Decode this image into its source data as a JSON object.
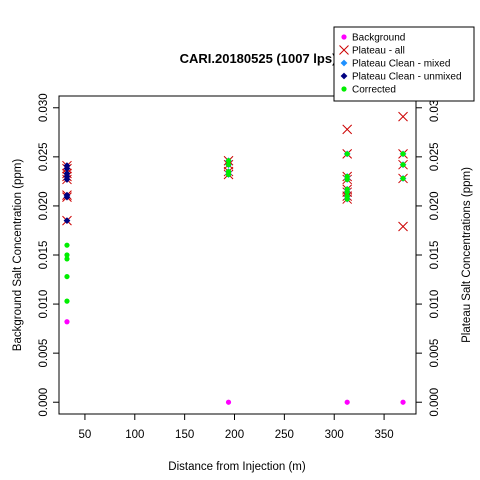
{
  "chart_data": {
    "type": "scatter",
    "title": "CARI.20180525 (1007 lps)",
    "xlabel": "Distance from Injection (m)",
    "ylabel_left": "Background Salt Concentration (ppm)",
    "ylabel_right": "Plateau Salt Concentrations (ppm)",
    "xlim": [
      24,
      382
    ],
    "ylim": [
      -0.0012,
      0.0312
    ],
    "x_ticks": [
      50,
      100,
      150,
      200,
      250,
      300,
      350
    ],
    "x_tick_labels": [
      "50",
      "100",
      "150",
      "200",
      "250",
      "300",
      "350"
    ],
    "y_ticks": [
      0,
      0.005,
      0.01,
      0.015,
      0.02,
      0.025,
      0.03
    ],
    "y_tick_labels": [
      "0.000",
      "0.005",
      "0.010",
      "0.015",
      "0.020",
      "0.025",
      "0.030"
    ],
    "legend": {
      "position": "top-right",
      "entries": [
        "Background",
        "Plateau - all",
        "Plateau Clean - mixed",
        "Plateau Clean - unmixed",
        "Corrected"
      ]
    },
    "grid": false,
    "series": [
      {
        "name": "Background",
        "marker": "dot",
        "color": "#ff00ff",
        "points": [
          {
            "x": 32,
            "y": 0.0082
          },
          {
            "x": 194,
            "y": 0.0
          },
          {
            "x": 313,
            "y": 0.0
          },
          {
            "x": 369,
            "y": 0.0
          }
        ]
      },
      {
        "name": "Plateau - all",
        "marker": "x",
        "color": "#cc0000",
        "points": [
          {
            "x": 32,
            "y": 0.0241
          },
          {
            "x": 32,
            "y": 0.0238
          },
          {
            "x": 32,
            "y": 0.0233
          },
          {
            "x": 32,
            "y": 0.023
          },
          {
            "x": 32,
            "y": 0.0227
          },
          {
            "x": 32,
            "y": 0.0211
          },
          {
            "x": 32,
            "y": 0.0209
          },
          {
            "x": 32,
            "y": 0.0185
          },
          {
            "x": 194,
            "y": 0.0246
          },
          {
            "x": 194,
            "y": 0.0242
          },
          {
            "x": 194,
            "y": 0.0235
          },
          {
            "x": 194,
            "y": 0.0232
          },
          {
            "x": 313,
            "y": 0.0278
          },
          {
            "x": 313,
            "y": 0.0253
          },
          {
            "x": 313,
            "y": 0.023
          },
          {
            "x": 313,
            "y": 0.0227
          },
          {
            "x": 313,
            "y": 0.0217
          },
          {
            "x": 313,
            "y": 0.0214
          },
          {
            "x": 313,
            "y": 0.021
          },
          {
            "x": 313,
            "y": 0.0207
          },
          {
            "x": 369,
            "y": 0.0291
          },
          {
            "x": 369,
            "y": 0.0253
          },
          {
            "x": 369,
            "y": 0.0242
          },
          {
            "x": 369,
            "y": 0.0228
          },
          {
            "x": 369,
            "y": 0.0179
          }
        ]
      },
      {
        "name": "Plateau Clean - mixed",
        "marker": "diamond",
        "color": "#1e90ff",
        "points": [
          {
            "x": 194,
            "y": 0.0246
          },
          {
            "x": 194,
            "y": 0.0242
          },
          {
            "x": 194,
            "y": 0.0235
          },
          {
            "x": 194,
            "y": 0.0232
          },
          {
            "x": 313,
            "y": 0.0253
          },
          {
            "x": 313,
            "y": 0.023
          },
          {
            "x": 313,
            "y": 0.0227
          },
          {
            "x": 313,
            "y": 0.0217
          },
          {
            "x": 313,
            "y": 0.0214
          },
          {
            "x": 313,
            "y": 0.021
          },
          {
            "x": 313,
            "y": 0.0207
          },
          {
            "x": 369,
            "y": 0.0253
          },
          {
            "x": 369,
            "y": 0.0242
          },
          {
            "x": 369,
            "y": 0.0228
          }
        ]
      },
      {
        "name": "Plateau Clean - unmixed",
        "marker": "diamond",
        "color": "#000080",
        "points": [
          {
            "x": 32,
            "y": 0.0241
          },
          {
            "x": 32,
            "y": 0.0238
          },
          {
            "x": 32,
            "y": 0.0233
          },
          {
            "x": 32,
            "y": 0.023
          },
          {
            "x": 32,
            "y": 0.0227
          },
          {
            "x": 32,
            "y": 0.0211
          },
          {
            "x": 32,
            "y": 0.0209
          },
          {
            "x": 32,
            "y": 0.0185
          }
        ]
      },
      {
        "name": "Corrected",
        "marker": "dot",
        "color": "#00ee00",
        "points": [
          {
            "x": 32,
            "y": 0.016
          },
          {
            "x": 32,
            "y": 0.015
          },
          {
            "x": 32,
            "y": 0.0146
          },
          {
            "x": 32,
            "y": 0.0128
          },
          {
            "x": 32,
            "y": 0.0103
          },
          {
            "x": 194,
            "y": 0.0246
          },
          {
            "x": 194,
            "y": 0.0242
          },
          {
            "x": 194,
            "y": 0.0235
          },
          {
            "x": 194,
            "y": 0.0232
          },
          {
            "x": 313,
            "y": 0.0253
          },
          {
            "x": 313,
            "y": 0.023
          },
          {
            "x": 313,
            "y": 0.0227
          },
          {
            "x": 313,
            "y": 0.0217
          },
          {
            "x": 313,
            "y": 0.0214
          },
          {
            "x": 313,
            "y": 0.021
          },
          {
            "x": 313,
            "y": 0.0207
          },
          {
            "x": 369,
            "y": 0.0253
          },
          {
            "x": 369,
            "y": 0.0242
          },
          {
            "x": 369,
            "y": 0.0228
          }
        ]
      }
    ]
  }
}
